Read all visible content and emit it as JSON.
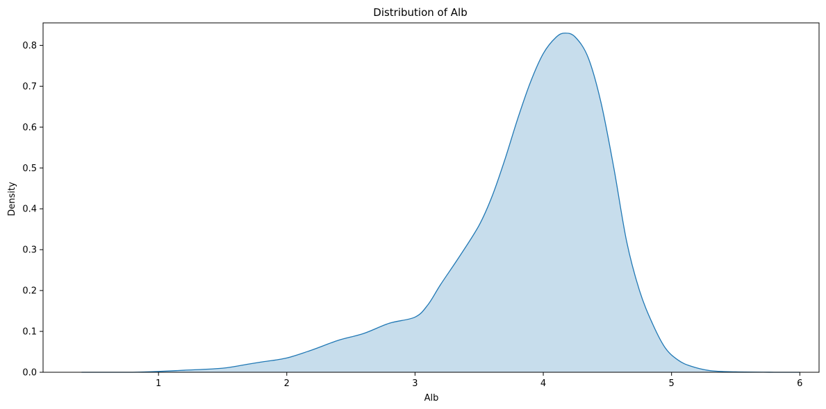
{
  "chart_data": {
    "type": "area",
    "title": "Distribution of Alb",
    "xlabel": "Alb",
    "ylabel": "Density",
    "xlim": [
      0.1,
      6.15
    ],
    "ylim": [
      0,
      0.855
    ],
    "x_ticks": [
      1,
      2,
      3,
      4,
      5,
      6
    ],
    "y_ticks": [
      0.0,
      0.1,
      0.2,
      0.3,
      0.4,
      0.5,
      0.6,
      0.7,
      0.8
    ],
    "x_tick_labels": [
      "1",
      "2",
      "3",
      "4",
      "5",
      "6"
    ],
    "y_tick_labels": [
      "0.0",
      "0.1",
      "0.2",
      "0.3",
      "0.4",
      "0.5",
      "0.6",
      "0.7",
      "0.8"
    ],
    "grid": false,
    "legend": "none",
    "series": [
      {
        "line_color": "#1f77b4",
        "fill_color": "#1f77b4",
        "fill_opacity": 0.25,
        "x": [
          0.4,
          0.8,
          1.0,
          1.2,
          1.5,
          1.7,
          1.8,
          2.0,
          2.2,
          2.4,
          2.6,
          2.8,
          3.0,
          3.1,
          3.2,
          3.35,
          3.5,
          3.6,
          3.7,
          3.8,
          3.9,
          4.0,
          4.1,
          4.17,
          4.25,
          4.35,
          4.45,
          4.55,
          4.65,
          4.75,
          4.85,
          4.95,
          5.05,
          5.15,
          5.3,
          5.5,
          5.8,
          6.0
        ],
        "y": [
          0.0,
          0.0,
          0.002,
          0.005,
          0.01,
          0.02,
          0.025,
          0.035,
          0.055,
          0.078,
          0.095,
          0.12,
          0.135,
          0.165,
          0.215,
          0.285,
          0.36,
          0.43,
          0.52,
          0.62,
          0.71,
          0.78,
          0.82,
          0.83,
          0.82,
          0.77,
          0.66,
          0.5,
          0.32,
          0.2,
          0.12,
          0.06,
          0.03,
          0.015,
          0.004,
          0.001,
          0.0,
          0.0
        ]
      }
    ]
  }
}
